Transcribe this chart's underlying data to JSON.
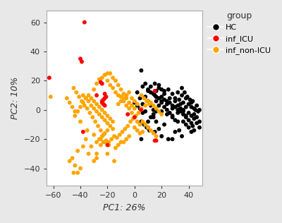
{
  "title": "",
  "xlabel": "PC1: 26%",
  "ylabel": "PC2: 10%",
  "xlim": [
    -65,
    50
  ],
  "ylim": [
    -52,
    68
  ],
  "xticks": [
    -60,
    -40,
    -20,
    0,
    20,
    40
  ],
  "yticks": [
    -40,
    -20,
    0,
    20,
    40,
    60
  ],
  "legend_title": "group",
  "HC_points": [
    [
      5,
      27
    ],
    [
      10,
      14
    ],
    [
      12,
      12
    ],
    [
      15,
      18
    ],
    [
      18,
      17
    ],
    [
      20,
      14
    ],
    [
      22,
      13
    ],
    [
      25,
      14
    ],
    [
      28,
      11
    ],
    [
      30,
      8
    ],
    [
      32,
      12
    ],
    [
      33,
      7
    ],
    [
      35,
      10
    ],
    [
      36,
      5
    ],
    [
      38,
      8
    ],
    [
      40,
      4
    ],
    [
      42,
      2
    ],
    [
      43,
      6
    ],
    [
      44,
      1
    ],
    [
      45,
      0
    ],
    [
      46,
      3
    ],
    [
      47,
      -1
    ],
    [
      48,
      0
    ],
    [
      15,
      10
    ],
    [
      18,
      8
    ],
    [
      20,
      9
    ],
    [
      22,
      7
    ],
    [
      24,
      6
    ],
    [
      26,
      5
    ],
    [
      28,
      3
    ],
    [
      30,
      2
    ],
    [
      32,
      0
    ],
    [
      34,
      -1
    ],
    [
      36,
      -3
    ],
    [
      38,
      -5
    ],
    [
      40,
      -7
    ],
    [
      42,
      -4
    ],
    [
      10,
      13
    ],
    [
      14,
      11
    ],
    [
      16,
      9
    ],
    [
      20,
      6
    ],
    [
      24,
      4
    ],
    [
      28,
      1
    ],
    [
      32,
      -2
    ],
    [
      36,
      -8
    ],
    [
      38,
      -10
    ],
    [
      40,
      -12
    ],
    [
      42,
      -9
    ],
    [
      44,
      -6
    ],
    [
      15,
      -15
    ],
    [
      20,
      -18
    ],
    [
      25,
      -20
    ],
    [
      5,
      -20
    ],
    [
      10,
      -12
    ],
    [
      18,
      15
    ],
    [
      22,
      11
    ],
    [
      30,
      6
    ],
    [
      34,
      4
    ],
    [
      26,
      8
    ],
    [
      12,
      16
    ],
    [
      16,
      13
    ],
    [
      8,
      18
    ],
    [
      6,
      16
    ],
    [
      28,
      -5
    ],
    [
      32,
      -8
    ],
    [
      24,
      -3
    ],
    [
      20,
      -1
    ],
    [
      38,
      2
    ],
    [
      40,
      -2
    ],
    [
      36,
      0
    ],
    [
      44,
      -3
    ],
    [
      42,
      5
    ],
    [
      46,
      -5
    ],
    [
      48,
      -8
    ],
    [
      43,
      -11
    ],
    [
      33,
      -14
    ],
    [
      35,
      -18
    ],
    [
      30,
      -15
    ],
    [
      28,
      -20
    ],
    [
      22,
      -10
    ],
    [
      18,
      -13
    ],
    [
      16,
      -8
    ],
    [
      14,
      -5
    ],
    [
      8,
      -1
    ],
    [
      6,
      4
    ],
    [
      4,
      8
    ],
    [
      2,
      12
    ],
    [
      35,
      15
    ],
    [
      37,
      12
    ],
    [
      39,
      9
    ],
    [
      41,
      7
    ],
    [
      24,
      0
    ],
    [
      26,
      -2
    ],
    [
      28,
      -4
    ],
    [
      30,
      -7
    ],
    [
      20,
      5
    ],
    [
      22,
      2
    ],
    [
      18,
      3
    ],
    [
      16,
      6
    ],
    [
      32,
      3
    ],
    [
      34,
      1
    ],
    [
      36,
      -1
    ],
    [
      38,
      -4
    ],
    [
      44,
      -14
    ],
    [
      46,
      -9
    ],
    [
      48,
      -12
    ],
    [
      42,
      -15
    ],
    [
      10,
      -8
    ],
    [
      12,
      -5
    ],
    [
      14,
      -3
    ],
    [
      16,
      -1
    ],
    [
      0,
      5
    ],
    [
      2,
      3
    ],
    [
      4,
      1
    ],
    [
      6,
      -2
    ],
    [
      8,
      9
    ],
    [
      10,
      6
    ],
    [
      12,
      3
    ],
    [
      14,
      0
    ],
    [
      5,
      -8
    ],
    [
      7,
      -10
    ],
    [
      9,
      -12
    ],
    [
      11,
      -14
    ]
  ],
  "inf_ICU_points": [
    [
      -37,
      60
    ],
    [
      -63,
      22
    ],
    [
      -40,
      35
    ],
    [
      -39,
      33
    ],
    [
      -25,
      19
    ],
    [
      -24,
      18
    ],
    [
      -28,
      10
    ],
    [
      -22,
      11
    ],
    [
      -21,
      9
    ],
    [
      -22,
      8
    ],
    [
      -23,
      7
    ],
    [
      -24,
      6
    ],
    [
      -24,
      5
    ],
    [
      -23,
      4
    ],
    [
      -22,
      3
    ],
    [
      -38,
      -15
    ],
    [
      0,
      -5
    ],
    [
      15,
      -21
    ],
    [
      15,
      13
    ],
    [
      5,
      0
    ],
    [
      -5,
      -3
    ],
    [
      -20,
      -24
    ],
    [
      16,
      -21
    ]
  ],
  "inf_non_ICU_points": [
    [
      -62,
      9
    ],
    [
      -45,
      -43
    ],
    [
      -42,
      -43
    ],
    [
      -34,
      -30
    ],
    [
      -30,
      -35
    ],
    [
      -28,
      -33
    ],
    [
      -25,
      -24
    ],
    [
      -23,
      -22
    ],
    [
      -20,
      -30
    ],
    [
      -15,
      -35
    ],
    [
      -22,
      -22
    ],
    [
      -25,
      -20
    ],
    [
      -30,
      -17
    ],
    [
      -35,
      -14
    ],
    [
      -40,
      -8
    ],
    [
      -44,
      -4
    ],
    [
      -42,
      -1
    ],
    [
      -40,
      2
    ],
    [
      -38,
      5
    ],
    [
      -36,
      8
    ],
    [
      -34,
      10
    ],
    [
      -30,
      14
    ],
    [
      -28,
      18
    ],
    [
      -26,
      21
    ],
    [
      -24,
      22
    ],
    [
      -22,
      24
    ],
    [
      -20,
      20
    ],
    [
      -18,
      17
    ],
    [
      -16,
      15
    ],
    [
      -14,
      12
    ],
    [
      -12,
      10
    ],
    [
      -10,
      9
    ],
    [
      -8,
      6
    ],
    [
      -6,
      3
    ],
    [
      -4,
      1
    ],
    [
      -2,
      -2
    ],
    [
      0,
      -5
    ],
    [
      2,
      -8
    ],
    [
      4,
      -10
    ],
    [
      6,
      -15
    ],
    [
      -38,
      10
    ],
    [
      -36,
      8
    ],
    [
      -34,
      6
    ],
    [
      -32,
      3
    ],
    [
      -30,
      1
    ],
    [
      -28,
      -1
    ],
    [
      -26,
      -3
    ],
    [
      -24,
      -5
    ],
    [
      -22,
      -7
    ],
    [
      -20,
      -9
    ],
    [
      -18,
      -11
    ],
    [
      -16,
      -13
    ],
    [
      -45,
      15
    ],
    [
      -43,
      12
    ],
    [
      -41,
      9
    ],
    [
      -39,
      6
    ],
    [
      -37,
      3
    ],
    [
      -35,
      1
    ],
    [
      -33,
      -2
    ],
    [
      -31,
      -5
    ],
    [
      -29,
      -8
    ],
    [
      -27,
      -11
    ],
    [
      -25,
      -14
    ],
    [
      -23,
      -17
    ],
    [
      -21,
      -21
    ],
    [
      -19,
      -24
    ],
    [
      -50,
      8
    ],
    [
      -48,
      5
    ],
    [
      -46,
      2
    ],
    [
      -44,
      -1
    ],
    [
      0,
      1
    ],
    [
      -2,
      3
    ],
    [
      -4,
      5
    ],
    [
      -6,
      8
    ],
    [
      -8,
      11
    ],
    [
      -10,
      14
    ],
    [
      -12,
      17
    ],
    [
      -14,
      20
    ],
    [
      -16,
      22
    ],
    [
      -18,
      25
    ],
    [
      -20,
      25
    ],
    [
      10,
      6
    ],
    [
      8,
      3
    ],
    [
      5,
      1
    ],
    [
      3,
      -2
    ],
    [
      1,
      -4
    ],
    [
      -1,
      -6
    ],
    [
      -3,
      -8
    ],
    [
      -5,
      -11
    ],
    [
      -7,
      -13
    ],
    [
      -9,
      -15
    ],
    [
      -11,
      -17
    ],
    [
      -13,
      -19
    ],
    [
      -28,
      -30
    ],
    [
      -32,
      -25
    ],
    [
      -36,
      -20
    ],
    [
      -38,
      -25
    ],
    [
      -42,
      -28
    ],
    [
      -46,
      -33
    ],
    [
      -48,
      -35
    ],
    [
      -40,
      -40
    ],
    [
      -44,
      -38
    ],
    [
      -20,
      -14
    ],
    [
      -22,
      -16
    ],
    [
      -24,
      -18
    ],
    [
      -26,
      -20
    ],
    [
      -28,
      -22
    ],
    [
      -15,
      -18
    ],
    [
      -17,
      -20
    ],
    [
      -19,
      -22
    ],
    [
      -10,
      -22
    ],
    [
      -12,
      -24
    ],
    [
      -14,
      -26
    ],
    [
      -6,
      -20
    ],
    [
      -8,
      -22
    ],
    [
      -4,
      -18
    ],
    [
      0,
      -12
    ],
    [
      2,
      -14
    ],
    [
      4,
      -16
    ],
    [
      6,
      -8
    ],
    [
      8,
      -10
    ],
    [
      10,
      -12
    ],
    [
      12,
      -14
    ],
    [
      14,
      -16
    ],
    [
      16,
      -18
    ],
    [
      -16,
      -8
    ],
    [
      -18,
      -6
    ],
    [
      -20,
      -4
    ],
    [
      -22,
      -2
    ],
    [
      -24,
      0
    ],
    [
      -26,
      2
    ],
    [
      -28,
      4
    ],
    [
      -30,
      6
    ],
    [
      -32,
      8
    ],
    [
      12,
      5
    ],
    [
      14,
      3
    ],
    [
      16,
      1
    ],
    [
      18,
      -1
    ],
    [
      20,
      -3
    ],
    [
      5,
      10
    ],
    [
      7,
      8
    ],
    [
      9,
      6
    ],
    [
      11,
      4
    ],
    [
      -2,
      8
    ],
    [
      0,
      6
    ],
    [
      2,
      4
    ],
    [
      -4,
      12
    ],
    [
      -6,
      10
    ],
    [
      -8,
      8
    ],
    [
      -10,
      6
    ],
    [
      -12,
      4
    ]
  ],
  "bg_color": "#e8e8e8",
  "panel_bg": "#ffffff",
  "font_color": "#333333",
  "marker_size": 18,
  "marker_size_legend": 7
}
